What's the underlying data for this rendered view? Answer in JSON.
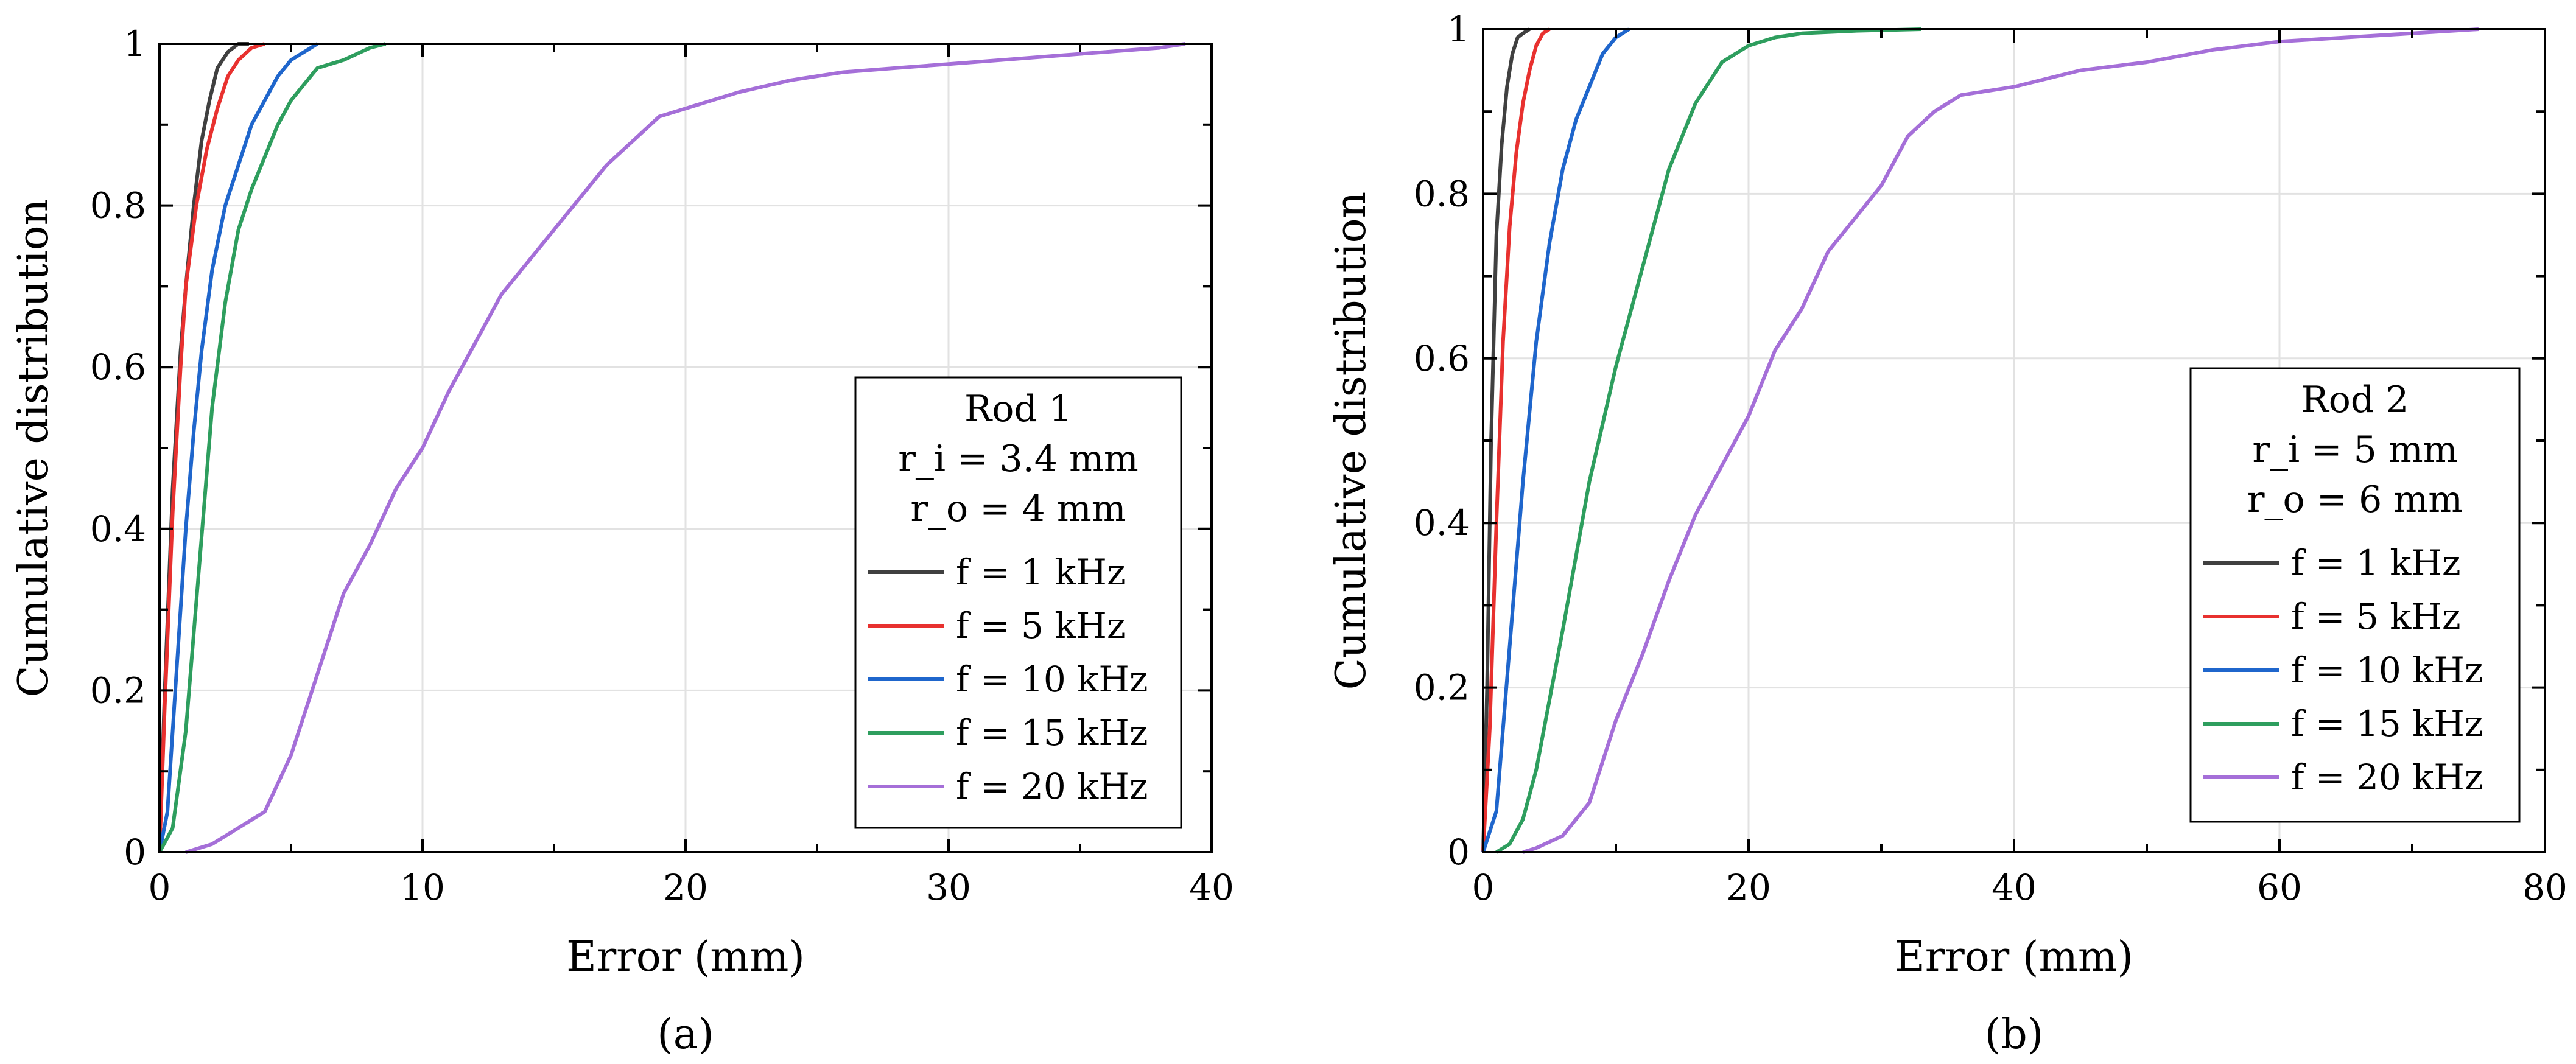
{
  "chart_data": [
    {
      "type": "line",
      "panel_label": "(a)",
      "xlabel": "Error (mm)",
      "ylabel": "Cumulative distribution",
      "xlim": [
        0,
        40
      ],
      "ylim": [
        0,
        1
      ],
      "xticks": [
        0,
        10,
        20,
        30,
        40
      ],
      "yticks": [
        0,
        0.2,
        0.4,
        0.6,
        0.8,
        1
      ],
      "xtick_labels": [
        "0",
        "10",
        "20",
        "30",
        "40"
      ],
      "ytick_labels": [
        "0",
        "0.2",
        "0.4",
        "0.6",
        "0.8",
        "1"
      ],
      "grid": true,
      "legend_position": "lower-right",
      "legend_title": [
        "Rod 1",
        "r_i = 3.4 mm",
        "r_o = 4 mm"
      ],
      "series": [
        {
          "name": "f = 1 kHz",
          "freq": "1 kHz",
          "color": "#404040",
          "x": [
            0,
            0.2,
            0.5,
            0.8,
            1.0,
            1.3,
            1.6,
            1.9,
            2.2,
            2.6,
            3.0,
            3.4
          ],
          "y": [
            0,
            0.2,
            0.45,
            0.62,
            0.7,
            0.8,
            0.88,
            0.93,
            0.97,
            0.99,
            1.0,
            1.0
          ]
        },
        {
          "name": "f = 5 kHz",
          "freq": "5 kHz",
          "color": "#e8312f",
          "x": [
            0,
            0.2,
            0.5,
            0.8,
            1.0,
            1.4,
            1.8,
            2.2,
            2.6,
            3.0,
            3.5,
            4.0
          ],
          "y": [
            0,
            0.18,
            0.42,
            0.6,
            0.7,
            0.8,
            0.87,
            0.92,
            0.96,
            0.98,
            0.995,
            1.0
          ]
        },
        {
          "name": "f = 10 kHz",
          "freq": "10 kHz",
          "color": "#1f66cc",
          "x": [
            0,
            0.3,
            0.6,
            1.0,
            1.3,
            1.6,
            2.0,
            2.5,
            3.0,
            3.5,
            4.0,
            4.5,
            5.0,
            5.5,
            6.0
          ],
          "y": [
            0,
            0.05,
            0.2,
            0.4,
            0.52,
            0.62,
            0.72,
            0.8,
            0.85,
            0.9,
            0.93,
            0.96,
            0.98,
            0.99,
            1.0
          ]
        },
        {
          "name": "f = 15 kHz",
          "freq": "15 kHz",
          "color": "#2e9e5e",
          "x": [
            0,
            0.5,
            1.0,
            1.5,
            2.0,
            2.5,
            3.0,
            3.5,
            4.0,
            4.5,
            5.0,
            5.5,
            6.0,
            7.0,
            8.0,
            8.6
          ],
          "y": [
            0,
            0.03,
            0.15,
            0.35,
            0.55,
            0.68,
            0.77,
            0.82,
            0.86,
            0.9,
            0.93,
            0.95,
            0.97,
            0.98,
            0.995,
            1.0
          ]
        },
        {
          "name": "f = 20 kHz",
          "freq": "20 kHz",
          "color": "#a56fd8",
          "x": [
            1,
            2,
            3,
            4,
            5,
            6,
            7,
            8,
            9,
            10,
            11,
            12,
            13,
            14,
            15,
            16,
            17,
            18,
            19,
            20,
            22,
            24,
            26,
            28,
            30,
            32,
            34,
            36,
            38,
            39
          ],
          "y": [
            0,
            0.01,
            0.03,
            0.05,
            0.12,
            0.22,
            0.32,
            0.38,
            0.45,
            0.5,
            0.57,
            0.63,
            0.69,
            0.73,
            0.77,
            0.81,
            0.85,
            0.88,
            0.91,
            0.92,
            0.94,
            0.955,
            0.965,
            0.97,
            0.975,
            0.98,
            0.985,
            0.99,
            0.995,
            1.0
          ]
        }
      ]
    },
    {
      "type": "line",
      "panel_label": "(b)",
      "xlabel": "Error (mm)",
      "ylabel": "Cumulative distribution",
      "xlim": [
        0,
        80
      ],
      "ylim": [
        0,
        1
      ],
      "xticks": [
        0,
        20,
        40,
        60,
        80
      ],
      "yticks": [
        0,
        0.2,
        0.4,
        0.6,
        0.8,
        1
      ],
      "xtick_labels": [
        "0",
        "20",
        "40",
        "60",
        "80"
      ],
      "ytick_labels": [
        "0",
        "0.2",
        "0.4",
        "0.6",
        "0.8",
        "1"
      ],
      "grid": true,
      "legend_position": "lower-right",
      "legend_title": [
        "Rod 2",
        "r_i = 5 mm",
        "r_o = 6 mm"
      ],
      "series": [
        {
          "name": "f = 1 kHz",
          "freq": "1 kHz",
          "color": "#404040",
          "x": [
            0,
            0.3,
            0.6,
            1.0,
            1.4,
            1.8,
            2.2,
            2.6,
            3.0,
            3.5
          ],
          "y": [
            0,
            0.2,
            0.5,
            0.75,
            0.86,
            0.93,
            0.97,
            0.99,
            0.995,
            1.0
          ]
        },
        {
          "name": "f = 5 kHz",
          "freq": "5 kHz",
          "color": "#e8312f",
          "x": [
            0,
            0.5,
            1.0,
            1.5,
            2.0,
            2.5,
            3.0,
            3.5,
            4.0,
            4.5,
            5.0
          ],
          "y": [
            0,
            0.15,
            0.4,
            0.62,
            0.76,
            0.85,
            0.91,
            0.95,
            0.98,
            0.995,
            1.0
          ]
        },
        {
          "name": "f = 10 kHz",
          "freq": "10 kHz",
          "color": "#1f66cc",
          "x": [
            0,
            1,
            2,
            3,
            4,
            5,
            6,
            7,
            8,
            9,
            10,
            11
          ],
          "y": [
            0,
            0.05,
            0.25,
            0.45,
            0.62,
            0.74,
            0.83,
            0.89,
            0.93,
            0.97,
            0.99,
            1.0
          ]
        },
        {
          "name": "f = 15 kHz",
          "freq": "15 kHz",
          "color": "#2e9e5e",
          "x": [
            1,
            2,
            3,
            4,
            6,
            8,
            10,
            12,
            14,
            16,
            18,
            20,
            22,
            24,
            28,
            33
          ],
          "y": [
            0,
            0.01,
            0.04,
            0.1,
            0.27,
            0.45,
            0.59,
            0.71,
            0.83,
            0.91,
            0.96,
            0.98,
            0.99,
            0.995,
            0.998,
            1.0
          ]
        },
        {
          "name": "f = 20 kHz",
          "freq": "20 kHz",
          "color": "#a56fd8",
          "x": [
            3,
            4,
            6,
            8,
            10,
            12,
            14,
            16,
            18,
            20,
            22,
            24,
            26,
            28,
            30,
            32,
            34,
            36,
            40,
            45,
            50,
            55,
            60,
            65,
            70,
            75
          ],
          "y": [
            0,
            0.005,
            0.02,
            0.06,
            0.16,
            0.24,
            0.33,
            0.41,
            0.47,
            0.53,
            0.61,
            0.66,
            0.73,
            0.77,
            0.81,
            0.87,
            0.9,
            0.92,
            0.93,
            0.95,
            0.96,
            0.975,
            0.985,
            0.99,
            0.995,
            1.0
          ]
        }
      ]
    }
  ]
}
